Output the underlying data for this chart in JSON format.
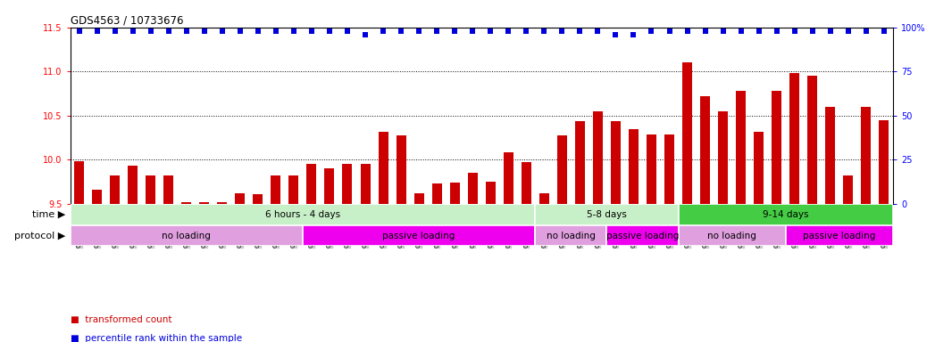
{
  "title": "GDS4563 / 10733676",
  "samples": [
    "GSM930471",
    "GSM930472",
    "GSM930473",
    "GSM930474",
    "GSM930475",
    "GSM930476",
    "GSM930477",
    "GSM930478",
    "GSM930479",
    "GSM930480",
    "GSM930481",
    "GSM930482",
    "GSM930483",
    "GSM930494",
    "GSM930495",
    "GSM930496",
    "GSM930497",
    "GSM930498",
    "GSM930499",
    "GSM930500",
    "GSM930501",
    "GSM930502",
    "GSM930503",
    "GSM930504",
    "GSM930505",
    "GSM930506",
    "GSM930484",
    "GSM930485",
    "GSM930486",
    "GSM930487",
    "GSM930507",
    "GSM930508",
    "GSM930509",
    "GSM930510",
    "GSM930488",
    "GSM930489",
    "GSM930490",
    "GSM930491",
    "GSM930492",
    "GSM930493",
    "GSM930511",
    "GSM930512",
    "GSM930513",
    "GSM930514",
    "GSM930515",
    "GSM930516"
  ],
  "bar_values": [
    9.98,
    9.66,
    9.82,
    9.93,
    9.82,
    9.82,
    9.52,
    9.52,
    9.52,
    9.62,
    9.61,
    9.82,
    9.82,
    9.95,
    9.9,
    9.95,
    9.95,
    10.32,
    10.28,
    9.62,
    9.73,
    9.74,
    9.85,
    9.75,
    10.08,
    9.97,
    9.62,
    10.28,
    10.44,
    10.55,
    10.44,
    10.35,
    10.29,
    10.29,
    11.1,
    10.72,
    10.55,
    10.78,
    10.32,
    10.78,
    10.98,
    10.95,
    10.6,
    9.82,
    10.6,
    10.45
  ],
  "percentile_values": [
    98,
    98,
    98,
    98,
    98,
    98,
    98,
    98,
    98,
    98,
    98,
    98,
    98,
    98,
    98,
    98,
    96,
    98,
    98,
    98,
    98,
    98,
    98,
    98,
    98,
    98,
    98,
    98,
    98,
    98,
    96,
    96,
    98,
    98,
    98,
    98,
    98,
    98,
    98,
    98,
    98,
    98,
    98,
    98,
    98,
    98
  ],
  "ylim_left": [
    9.5,
    11.5
  ],
  "ylim_right": [
    0,
    100
  ],
  "yticks_left": [
    9.5,
    10.0,
    10.5,
    11.0,
    11.5
  ],
  "yticks_right": [
    0,
    25,
    50,
    75,
    100
  ],
  "ytick_labels_right": [
    "0",
    "25",
    "50",
    "75",
    "100%"
  ],
  "bar_color": "#cc0000",
  "dot_color": "#0000dd",
  "xticklabel_bg": "#c8c8c8",
  "time_groups": [
    {
      "label": "6 hours - 4 days",
      "start": 0,
      "end": 25,
      "color": "#c8f0c8"
    },
    {
      "label": "5-8 days",
      "start": 26,
      "end": 33,
      "color": "#c8f0c8"
    },
    {
      "label": "9-14 days",
      "start": 34,
      "end": 45,
      "color": "#44cc44"
    }
  ],
  "protocol_groups": [
    {
      "label": "no loading",
      "start": 0,
      "end": 12,
      "color": "#e0a0e0"
    },
    {
      "label": "passive loading",
      "start": 13,
      "end": 25,
      "color": "#ee00ee"
    },
    {
      "label": "no loading",
      "start": 26,
      "end": 29,
      "color": "#e0a0e0"
    },
    {
      "label": "passive loading",
      "start": 30,
      "end": 33,
      "color": "#ee00ee"
    },
    {
      "label": "no loading",
      "start": 34,
      "end": 39,
      "color": "#e0a0e0"
    },
    {
      "label": "passive loading",
      "start": 40,
      "end": 45,
      "color": "#ee00ee"
    }
  ],
  "legend_items": [
    {
      "label": "transformed count",
      "color": "#cc0000"
    },
    {
      "label": "percentile rank within the sample",
      "color": "#0000dd"
    }
  ]
}
